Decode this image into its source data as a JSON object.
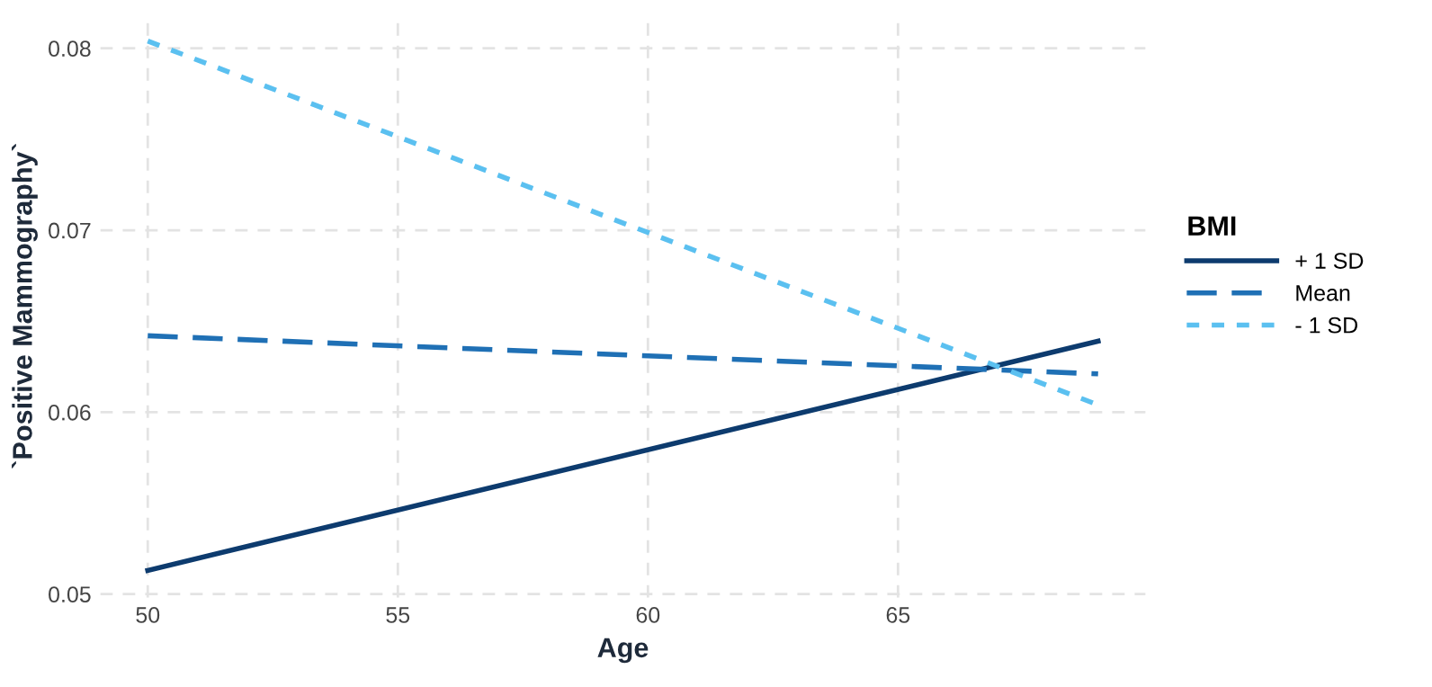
{
  "chart_data": {
    "type": "line",
    "xlabel": "Age",
    "ylabel": "`Positive Mammography`",
    "legend_title": "BMI",
    "xlim": [
      49.05,
      69.95
    ],
    "xticks": [
      50,
      55,
      60,
      65
    ],
    "ylim": [
      0.0498,
      0.0819
    ],
    "yticks": [
      0.05,
      0.06,
      0.07,
      0.08
    ],
    "grid": true,
    "legend": "right",
    "x": [
      50,
      69
    ],
    "series": [
      {
        "name": "+ 1 SD",
        "color": "#0d3b6e",
        "line_style": "solid",
        "values": [
          0.0513,
          0.0639
        ]
      },
      {
        "name": "Mean",
        "color": "#1f70b5",
        "line_style": "dashed",
        "values": [
          0.0642,
          0.0621
        ]
      },
      {
        "name": "- 1 SD",
        "color": "#5bc0f0",
        "line_style": "dotted",
        "values": [
          0.0804,
          0.0604
        ]
      }
    ]
  }
}
